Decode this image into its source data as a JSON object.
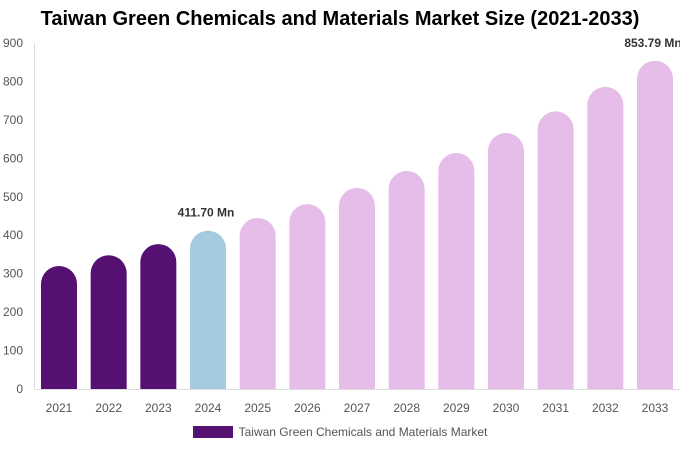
{
  "chart_data": {
    "type": "bar",
    "title": "Taiwan Green Chemicals and Materials Market Size (2021-2033)",
    "categories": [
      "2021",
      "2022",
      "2023",
      "2024",
      "2025",
      "2026",
      "2027",
      "2028",
      "2029",
      "2030",
      "2031",
      "2032",
      "2033"
    ],
    "series": [
      {
        "name": "Taiwan Green Chemicals and Materials Market",
        "values": [
          320,
          348,
          377,
          411.7,
          445,
          481,
          523,
          567,
          614,
          666,
          722,
          786,
          853.79
        ]
      }
    ],
    "data_labels": [
      {
        "category": "2024",
        "text": "411.70 Mn"
      },
      {
        "category": "2033",
        "text": "853.79 Mn"
      }
    ],
    "ylim": [
      0,
      900
    ],
    "yticks": [
      0,
      100,
      200,
      300,
      400,
      500,
      600,
      700,
      800,
      900
    ],
    "xlabel": "",
    "ylabel": "",
    "grid": false,
    "legend": "bottom",
    "colors": {
      "historical": "#541172",
      "base_year": "#a3cadf",
      "forecast": "#e6bde9"
    }
  }
}
